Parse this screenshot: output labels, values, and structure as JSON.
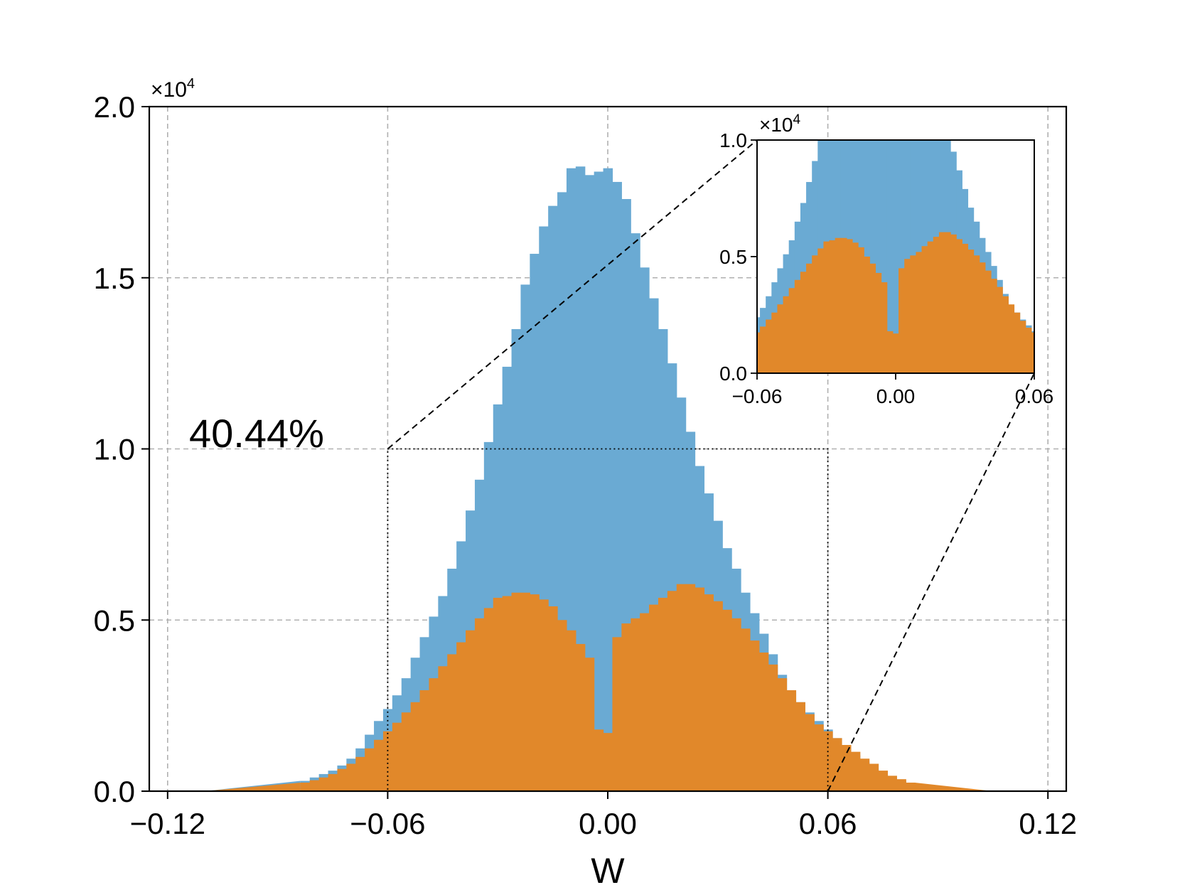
{
  "chart_data": {
    "type": "bar",
    "subtype": "histogram-overlay",
    "title": "",
    "xlabel": "W",
    "ylabel": "",
    "xlim": [
      -0.125,
      0.125
    ],
    "ylim": [
      0,
      20000
    ],
    "x_ticks": [
      -0.12,
      -0.06,
      0.0,
      0.06,
      0.12
    ],
    "x_tick_labels": [
      "−0.12",
      "−0.06",
      "0.00",
      "0.06",
      "0.12"
    ],
    "y_ticks": [
      0,
      5000,
      10000,
      15000,
      20000
    ],
    "y_tick_labels": [
      "0.0",
      "0.5",
      "1.0",
      "1.5",
      "2.0"
    ],
    "y_scale_label": "×10",
    "y_scale_exp": "4",
    "grid": true,
    "annotation": "40.44%",
    "zoom_region": {
      "x": [
        -0.06,
        0.06
      ],
      "y": [
        0,
        10000
      ]
    },
    "bin_width": 0.0025,
    "series": [
      {
        "color": "#6aaad3",
        "x": [
          -0.0825,
          -0.08,
          -0.0775,
          -0.075,
          -0.0725,
          -0.07,
          -0.0675,
          -0.065,
          -0.0625,
          -0.06,
          -0.0575,
          -0.055,
          -0.0525,
          -0.05,
          -0.0475,
          -0.045,
          -0.0425,
          -0.04,
          -0.0375,
          -0.035,
          -0.0325,
          -0.03,
          -0.0275,
          -0.025,
          -0.0225,
          -0.02,
          -0.0175,
          -0.015,
          -0.0125,
          -0.01,
          -0.0075,
          -0.005,
          -0.0025,
          0.0,
          0.0025,
          0.005,
          0.0075,
          0.01,
          0.0125,
          0.015,
          0.0175,
          0.02,
          0.0225,
          0.025,
          0.0275,
          0.03,
          0.0325,
          0.035,
          0.0375,
          0.04,
          0.0425,
          0.045,
          0.0475,
          0.05,
          0.0525,
          0.055,
          0.0575,
          0.06,
          0.0625,
          0.065,
          0.0675,
          0.07,
          0.0725,
          0.075,
          0.0775,
          0.08,
          0.0825
        ],
        "values": [
          300,
          400,
          500,
          600,
          750,
          950,
          1250,
          1650,
          2050,
          2400,
          2800,
          3300,
          3900,
          4500,
          5100,
          5700,
          6500,
          7300,
          8200,
          9100,
          10200,
          11300,
          12400,
          13500,
          14800,
          15700,
          16500,
          17100,
          17500,
          18200,
          18250,
          18000,
          18100,
          18200,
          17800,
          17300,
          16300,
          15300,
          14400,
          13500,
          12500,
          11500,
          10500,
          9500,
          8700,
          7900,
          7100,
          6500,
          5800,
          5200,
          4600,
          4000,
          3400,
          2900,
          2600,
          2300,
          2050,
          1800,
          1550,
          1300,
          1050,
          850,
          650,
          500,
          400,
          300,
          200
        ]
      },
      {
        "color": "#e1882a",
        "x": [
          -0.0825,
          -0.08,
          -0.0775,
          -0.075,
          -0.0725,
          -0.07,
          -0.0675,
          -0.065,
          -0.0625,
          -0.06,
          -0.0575,
          -0.055,
          -0.0525,
          -0.05,
          -0.0475,
          -0.045,
          -0.0425,
          -0.04,
          -0.0375,
          -0.035,
          -0.0325,
          -0.03,
          -0.0275,
          -0.025,
          -0.0225,
          -0.02,
          -0.0175,
          -0.015,
          -0.0125,
          -0.01,
          -0.0075,
          -0.005,
          -0.0025,
          0.0,
          0.0025,
          0.005,
          0.0075,
          0.01,
          0.0125,
          0.015,
          0.0175,
          0.02,
          0.0225,
          0.025,
          0.0275,
          0.03,
          0.0325,
          0.035,
          0.0375,
          0.04,
          0.0425,
          0.045,
          0.0475,
          0.05,
          0.0525,
          0.055,
          0.0575,
          0.06,
          0.0625,
          0.065,
          0.0675,
          0.07,
          0.0725,
          0.075,
          0.0775,
          0.08,
          0.0825
        ],
        "values": [
          250,
          320,
          400,
          500,
          650,
          800,
          1000,
          1250,
          1500,
          1750,
          2000,
          2300,
          2600,
          2950,
          3300,
          3650,
          4000,
          4350,
          4700,
          5050,
          5350,
          5650,
          5700,
          5800,
          5800,
          5750,
          5600,
          5400,
          5000,
          4700,
          4300,
          3900,
          1800,
          1700,
          4500,
          4900,
          5050,
          5200,
          5450,
          5650,
          5850,
          6050,
          6050,
          5950,
          5750,
          5550,
          5300,
          5050,
          4750,
          4400,
          4050,
          3700,
          3300,
          2950,
          2600,
          2250,
          1950,
          1750,
          1550,
          1350,
          1150,
          950,
          800,
          600,
          450,
          350,
          250
        ]
      }
    ],
    "inset": {
      "xlim": [
        -0.06,
        0.06
      ],
      "ylim": [
        0,
        10000
      ],
      "x_ticks": [
        -0.06,
        0.0,
        0.06
      ],
      "x_tick_labels": [
        "−0.06",
        "0.00",
        "0.06"
      ],
      "y_ticks": [
        0,
        5000,
        10000
      ],
      "y_tick_labels": [
        "0.0",
        "0.5",
        "1.0"
      ],
      "y_scale_label": "×10",
      "y_scale_exp": "4"
    },
    "tails": {
      "left": {
        "from": -0.11,
        "to": -0.0825
      },
      "right": {
        "from": 0.0825,
        "to": 0.105
      }
    }
  }
}
